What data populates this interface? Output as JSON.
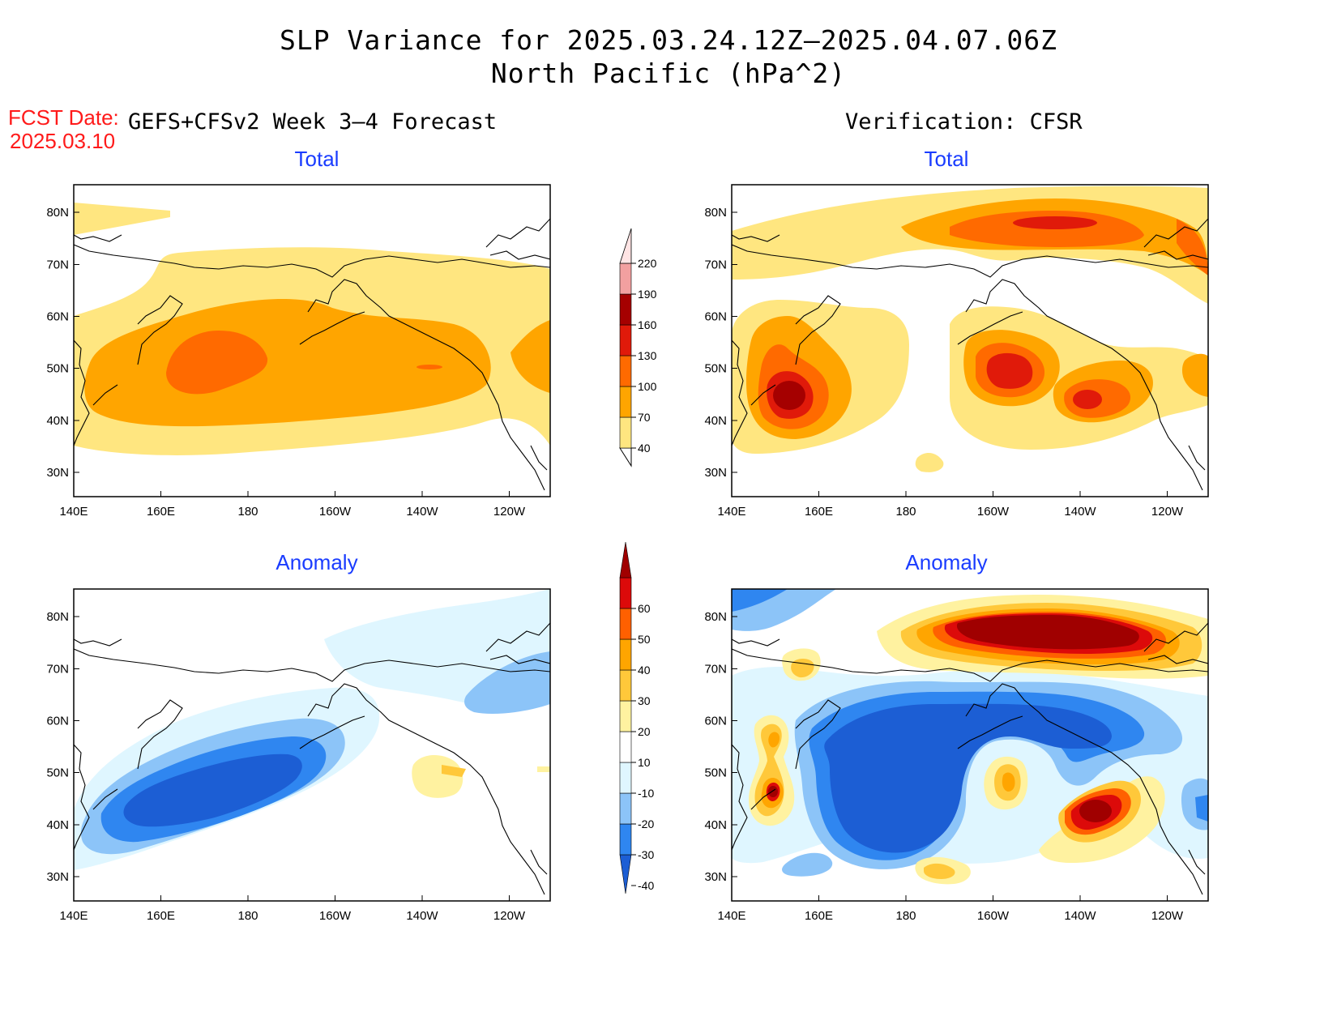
{
  "title_line1": "SLP Variance for 2025.03.24.12Z–2025.04.07.06Z",
  "title_line2": "North Pacific (hPa^2)",
  "fcst_label": "FCST Date:",
  "fcst_date": "2025.03.10",
  "left_header": "GEFS+CFSv2 Week 3–4 Forecast",
  "right_header": "Verification: CFSR",
  "panel_titles": {
    "total": "Total",
    "anomaly": "Anomaly"
  },
  "axes": {
    "lon_labels": [
      "140E",
      "160E",
      "180",
      "160W",
      "140W",
      "120W"
    ],
    "lat_labels": [
      "80N",
      "70N",
      "60N",
      "50N",
      "40N",
      "30N"
    ]
  },
  "colorbar_total": {
    "levels": [
      "40",
      "70",
      "100",
      "130",
      "160",
      "190",
      "220"
    ],
    "colors": [
      "#ffe680",
      "#ffa500",
      "#ff6a00",
      "#e01a0a",
      "#a50000",
      "#f2a0a0",
      "#ffe4e4"
    ]
  },
  "colorbar_anomaly": {
    "levels": [
      "-40",
      "-30",
      "-20",
      "-10",
      "10",
      "20",
      "30",
      "40",
      "50",
      "60"
    ],
    "colors": [
      "#1c5ed4",
      "#2f86f0",
      "#8cc4f8",
      "#dff6ff",
      "#ffffff",
      "#fff2a0",
      "#ffc83a",
      "#ffa500",
      "#ff6000",
      "#dc0a0a",
      "#a00000"
    ]
  },
  "colors": {
    "t40": "#ffe680",
    "t70": "#ffa500",
    "t100": "#ff6a00",
    "t130": "#e01a0a",
    "t160": "#a50000",
    "a_m10": "#dff6ff",
    "a_m20": "#8cc4f8",
    "a_m30": "#2f86f0",
    "a_m40": "#1c5ed4",
    "a_10": "#fff2a0",
    "a_20": "#ffc83a",
    "a_30": "#ffa500",
    "a_40": "#ff6000",
    "a_50": "#dc0a0a",
    "a_60": "#a00000"
  }
}
